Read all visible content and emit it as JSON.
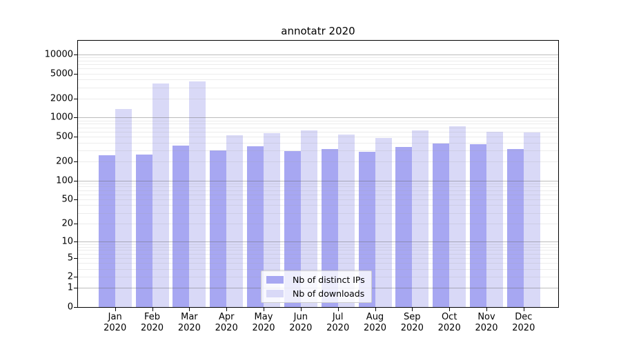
{
  "title": "annotatr 2020",
  "colors": {
    "background": "#ffffff",
    "distinct_ips_bar": "#a7a7f2",
    "downloads_bar": "#d9d9f7",
    "axis": "#000000",
    "major_gridline": "#a9a9a9",
    "minor_gridline": "#e6e6e6",
    "legend_border": "#cccccc"
  },
  "chart_data": {
    "type": "bar",
    "title": "annotatr 2020",
    "categories": [
      "Jan",
      "Feb",
      "Mar",
      "Apr",
      "May",
      "Jun",
      "Jul",
      "Aug",
      "Sep",
      "Oct",
      "Nov",
      "Dec"
    ],
    "x_year": "2020",
    "series": [
      {
        "name": "Nb of distinct IPs",
        "color": "#a7a7f2",
        "values": [
          253,
          261,
          358,
          303,
          349,
          296,
          320,
          285,
          340,
          386,
          380,
          314
        ]
      },
      {
        "name": "Nb of downloads",
        "color": "#d9d9f7",
        "values": [
          1357,
          3449,
          3753,
          531,
          568,
          628,
          532,
          476,
          627,
          724,
          597,
          583
        ]
      }
    ],
    "xlabel": "",
    "ylabel": "",
    "yscale": "log10(value+1)",
    "yticks": [
      0,
      1,
      2,
      5,
      10,
      20,
      50,
      100,
      200,
      500,
      1000,
      2000,
      5000,
      10000
    ],
    "ylim": [
      0,
      16500
    ],
    "grid": "horizontal, major at powers of 10 with minor lines at 2-9 per decade, drawn over bars",
    "legend_position": "lower center (inside plot)"
  }
}
